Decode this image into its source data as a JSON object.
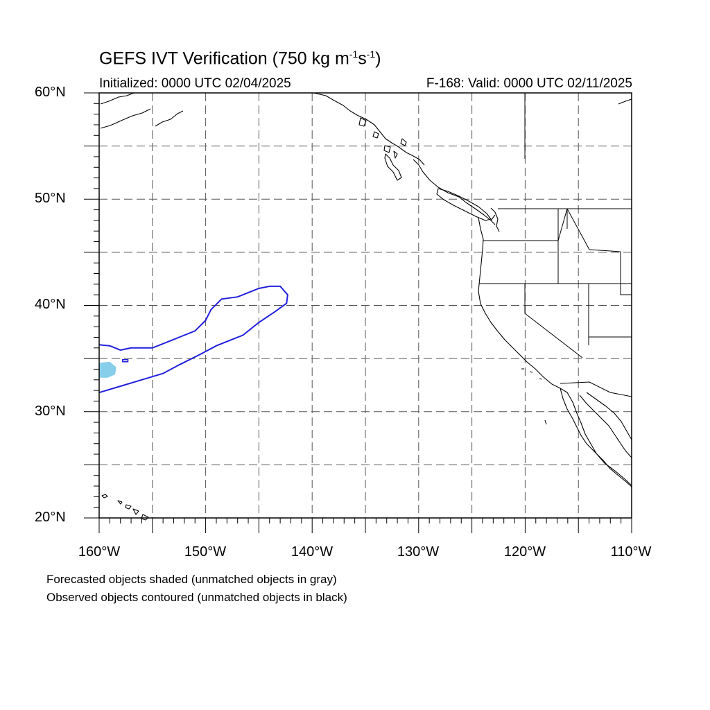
{
  "title": {
    "text": "GEFS IVT Verification (750 kg m",
    "sup1": "-1",
    "mid": "s",
    "sup2": "-1",
    "end": ")"
  },
  "subtitle": {
    "left": "Initialized: 0000 UTC 02/04/2025",
    "right": "F-168: Valid: 0000 UTC 02/11/2025"
  },
  "axes": {
    "lat_labels": [
      "60°N",
      "50°N",
      "40°N",
      "30°N",
      "20°N"
    ],
    "lon_labels": [
      "160°W",
      "150°W",
      "140°W",
      "130°W",
      "120°W",
      "110°W"
    ],
    "lat_range": [
      20,
      60
    ],
    "lon_range": [
      -160,
      -110
    ],
    "grid": "dashed every 5 degrees"
  },
  "legend": {
    "line1": "Forecasted objects shaded (unmatched objects in gray)",
    "line2": "Observed objects contoured (unmatched objects in black)"
  },
  "colors": {
    "forecast_fill": "#87ceeb",
    "observed_contour": "#1f1fdc",
    "coastline": "#000000",
    "grid": "#555555"
  },
  "objects": {
    "observed_contour": {
      "label": "observed IVT object",
      "color": "#1f1fdc",
      "points": [
        [
          -160,
          31.8
        ],
        [
          -158,
          32.4
        ],
        [
          -156,
          33
        ],
        [
          -154,
          33.6
        ],
        [
          -152.5,
          34.4
        ],
        [
          -150.5,
          35.4
        ],
        [
          -149,
          36.2
        ],
        [
          -148,
          36.6
        ],
        [
          -146.5,
          37.2
        ],
        [
          -145,
          38.4
        ],
        [
          -143.5,
          39.4
        ],
        [
          -142.4,
          40.2
        ],
        [
          -142.3,
          41
        ],
        [
          -143,
          41.8
        ],
        [
          -144,
          41.8
        ],
        [
          -145,
          41.6
        ],
        [
          -146,
          41.2
        ],
        [
          -147,
          40.8
        ],
        [
          -148.5,
          40.6
        ],
        [
          -149.5,
          39.6
        ],
        [
          -150,
          38.6
        ],
        [
          -151,
          37.6
        ],
        [
          -152.5,
          37
        ],
        [
          -154,
          36.4
        ],
        [
          -155,
          36
        ],
        [
          -157,
          36
        ],
        [
          -158,
          35.8
        ],
        [
          -159,
          36.2
        ],
        [
          -160,
          36.3
        ]
      ]
    },
    "forecast_shaded": {
      "label": "forecast IVT object",
      "color": "#87ceeb",
      "points": [
        [
          -160,
          33.2
        ],
        [
          -159.2,
          33.2
        ],
        [
          -158.5,
          33.5
        ],
        [
          -158.4,
          34.2
        ],
        [
          -159,
          34.7
        ],
        [
          -160,
          34.6
        ]
      ]
    },
    "observed_small": {
      "color": "#1f1fdc",
      "points": [
        [
          -157.8,
          34.7
        ],
        [
          -157.3,
          34.7
        ],
        [
          -157.3,
          34.9
        ],
        [
          -157.8,
          34.9
        ]
      ]
    }
  }
}
